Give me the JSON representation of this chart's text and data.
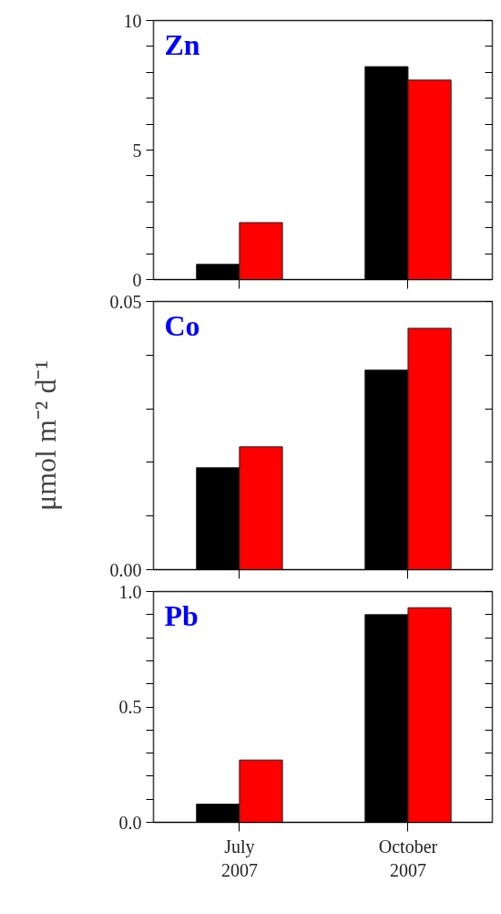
{
  "chart_data": [
    {
      "type": "bar",
      "title": "Zn",
      "categories": [
        null,
        null
      ],
      "series": [
        {
          "color": "#000000",
          "values": [
            0.59,
            8.22
          ]
        },
        {
          "color": "#ff0000",
          "values": [
            2.2,
            7.7
          ]
        }
      ],
      "ylim": [
        0,
        10
      ],
      "yticks": [
        0,
        {
          "value": 1,
          "label": null
        },
        {
          "value": 2,
          "label": null
        },
        {
          "value": 3,
          "label": null
        },
        {
          "value": 4,
          "label": null
        },
        5,
        {
          "value": 6,
          "label": null
        },
        {
          "value": 7,
          "label": null
        },
        {
          "value": 8,
          "label": null
        },
        {
          "value": 9,
          "label": null
        },
        10
      ],
      "tick_labels": "y"
    },
    {
      "type": "bar",
      "title": "Co",
      "ylabel": "μmol m⁻² d⁻¹",
      "categories": [
        null,
        null
      ],
      "series": [
        {
          "color": "#000000",
          "values": [
            0.019,
            0.0372
          ]
        },
        {
          "color": "#ff0000",
          "values": [
            0.0229,
            0.045
          ]
        }
      ],
      "ylim": [
        0,
        0.05
      ],
      "yticks": [
        {
          "value": 0,
          "label": "0.00"
        },
        {
          "value": 0.01,
          "label": null
        },
        {
          "value": 0.02,
          "label": null
        },
        {
          "value": 0.03,
          "label": null
        },
        {
          "value": 0.04,
          "label": null
        },
        {
          "value": 0.05,
          "label": "0.05"
        }
      ],
      "tick_labels": "y"
    },
    {
      "type": "bar",
      "title": "Pb",
      "categories": [
        "July\n2007",
        "October\n2007"
      ],
      "series": [
        {
          "color": "#000000",
          "values": [
            0.079,
            0.9
          ]
        },
        {
          "color": "#ff0000",
          "values": [
            0.27,
            0.93
          ]
        }
      ],
      "ylim": [
        0,
        1
      ],
      "yticks": [
        {
          "value": 0,
          "label": "0.0"
        },
        {
          "value": 0.1,
          "label": null
        },
        {
          "value": 0.2,
          "label": null
        },
        {
          "value": 0.3,
          "label": null
        },
        {
          "value": 0.4,
          "label": null
        },
        {
          "value": 0.5,
          "label": "0.5"
        },
        {
          "value": 0.6,
          "label": null
        },
        {
          "value": 0.7,
          "label": null
        },
        {
          "value": 0.8,
          "label": null
        },
        {
          "value": 0.9,
          "label": null
        },
        {
          "value": 1,
          "label": "1.0"
        }
      ]
    }
  ]
}
